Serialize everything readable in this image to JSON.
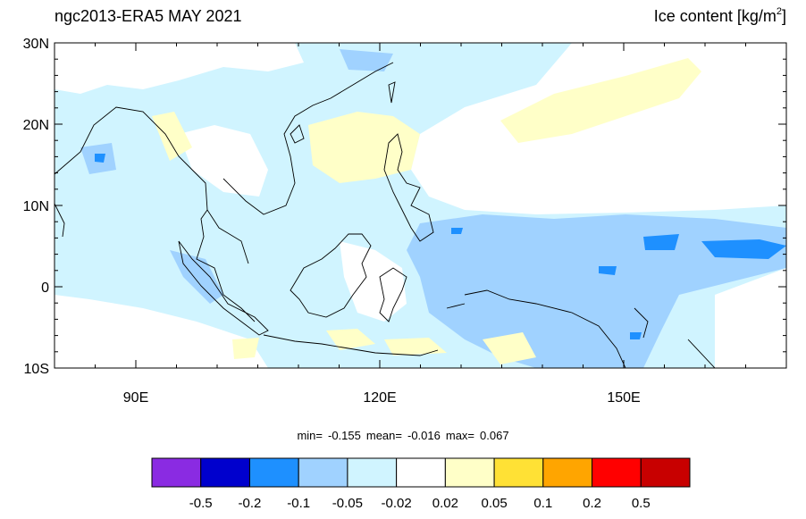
{
  "chart_data": {
    "type": "map",
    "title": "ngc2013-ERA5 MAY 2021",
    "title_right": "Ice content  [kg/m",
    "title_right_sup": "2",
    "title_right_end": "]",
    "xlim": [
      80,
      170
    ],
    "ylim": [
      -10,
      30
    ],
    "xticks": [
      {
        "value": 90,
        "label": "90E"
      },
      {
        "value": 120,
        "label": "120E"
      },
      {
        "value": 150,
        "label": "150E"
      }
    ],
    "yticks": [
      {
        "value": 30,
        "label": "30N"
      },
      {
        "value": 20,
        "label": "20N"
      },
      {
        "value": 10,
        "label": "10N"
      },
      0,
      {
        "value": -10,
        "label": "10S"
      }
    ],
    "stats": [
      {
        "label": "min=",
        "value": -0.155
      },
      {
        "label": "mean=",
        "value": -0.016
      },
      {
        "label": "max=",
        "value": 0.067
      }
    ],
    "colorbar": {
      "colors": [
        "#8a2be2",
        "#0000cd",
        "#1e90ff",
        "#a0d2ff",
        "#d0f4ff",
        "#ffffff",
        "#ffffc8",
        "#ffe135",
        "#ffa500",
        "#ff0000",
        "#c80000"
      ],
      "levels": [
        -0.5,
        -0.2,
        -0.1,
        -0.05,
        -0.02,
        0.02,
        0.05,
        0.1,
        0.2,
        0.5
      ]
    }
  }
}
